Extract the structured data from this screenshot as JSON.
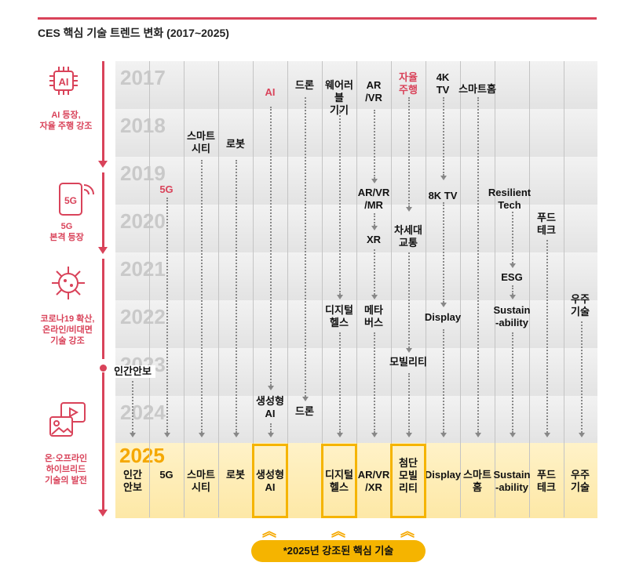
{
  "title": "CES 핵심 기술 트렌드 변화 (2017~2025)",
  "years": [
    "2017",
    "2018",
    "2019",
    "2020",
    "2021",
    "2022",
    "2023",
    "2024"
  ],
  "year_2025": "2025",
  "sidebar": [
    {
      "icon": "ai-chip-icon",
      "label": "AI 등장,\n자율 주행 강조"
    },
    {
      "icon": "5g-phone-icon",
      "label": "5G\n본격 등장"
    },
    {
      "icon": "virus-icon",
      "label": "코로나19 확산,\n온라인/비대면\n기술 강조"
    },
    {
      "icon": "online-offline-icon",
      "label": "온·오프라인\n하이브리드\n기술의 발전"
    }
  ],
  "trends_2017": [
    "AI",
    "드론",
    "웨어러블\n기기",
    "AR\n/VR",
    "자율\n주행",
    "4K\nTV",
    "스마트홈"
  ],
  "trends_2018": [
    "스마트\n시티",
    "로봇"
  ],
  "trends_2019": [
    "5G"
  ],
  "trends_2020": [
    "AR/VR\n/MR",
    "8K TV",
    "Resilient\nTech",
    "푸드\n테크",
    "XR",
    "차세대\n교통"
  ],
  "trends_2021": [
    "ESG"
  ],
  "trends_2022": [
    "디지털\n헬스",
    "메타\n버스",
    "Display",
    "Sustain\n-ability",
    "우주\n기술"
  ],
  "trends_2023": [
    "인간안보",
    "모빌리티"
  ],
  "trends_2024": [
    "생성형\nAI",
    "드론"
  ],
  "final_2025": [
    "인간\n안보",
    "5G",
    "스마트\n시티",
    "로봇",
    "생성형\nAI",
    "디지털\n헬스",
    "AR/VR\n/XR",
    "첨단\n모빌\n리티",
    "Display",
    "스마트\n홈",
    "Sustain\n-ability",
    "푸드\n테크",
    "우주\n기술"
  ],
  "footnote": "*2025년 강조된 핵심 기술",
  "colors": {
    "accent": "#d9435a",
    "highlight": "#f5b400",
    "row2025": "#fde8a6"
  }
}
